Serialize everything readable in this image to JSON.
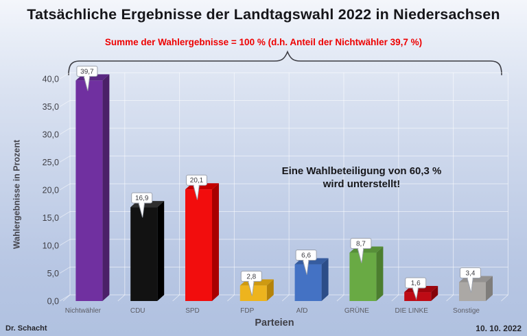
{
  "header": {
    "title": "Tatsächliche Ergebnisse der Landtagswahl 2022 in Niedersachsen",
    "subtitle": "Summe der Wahlergebnisse = 100 % (d.h. Anteil der Nichtwähler 39,7 %)",
    "subtitle_color": "#ee0000"
  },
  "annotation": {
    "line1": "Eine Wahlbeteiligung von 60,3 %",
    "line2": "wird unterstellt!"
  },
  "footer": {
    "author": "Dr. Schacht",
    "date": "10. 10. 2022"
  },
  "chart_data": {
    "type": "bar",
    "projection": "3d",
    "title": "Tatsächliche Ergebnisse der Landtagswahl 2022 in Niedersachsen",
    "categories": [
      "Nichtwähler",
      "CDU",
      "SPD",
      "FDP",
      "AfD",
      "GRÜNE",
      "DIE LINKE",
      "Sonstige"
    ],
    "values": [
      39.7,
      16.9,
      20.1,
      2.8,
      6.6,
      8.7,
      1.6,
      3.4
    ],
    "value_labels": [
      "39,7",
      "16,9",
      "20,1",
      "2,8",
      "6,6",
      "8,7",
      "1,6",
      "3,4"
    ],
    "bar_colors": [
      "#7030A0",
      "#121212",
      "#F20D0D",
      "#EDB41E",
      "#4472C4",
      "#69AA44",
      "#BE0B15",
      "#ABA8A5"
    ],
    "bar_side_colors": [
      "#4B2068",
      "#000000",
      "#A80000",
      "#B5830A",
      "#2C4D88",
      "#4C7E2F",
      "#840309",
      "#7F7D7B"
    ],
    "bar_top_colors": [
      "#5A2883",
      "#2E2E2E",
      "#C40000",
      "#CE9A12",
      "#365C9F",
      "#578F38",
      "#9D060E",
      "#939190"
    ],
    "xlabel": "Parteien",
    "ylabel": "Wahlergebnisse in Prozent",
    "ylim": [
      0,
      40
    ],
    "ytick_step": 5,
    "ytick_labels": [
      "0,0",
      "5,0",
      "10,0",
      "15,0",
      "20,0",
      "25,0",
      "30,0",
      "35,0",
      "40,0"
    ],
    "grid": true,
    "legend": false,
    "gridline_color": "rgba(255,255,255,0.55)"
  }
}
